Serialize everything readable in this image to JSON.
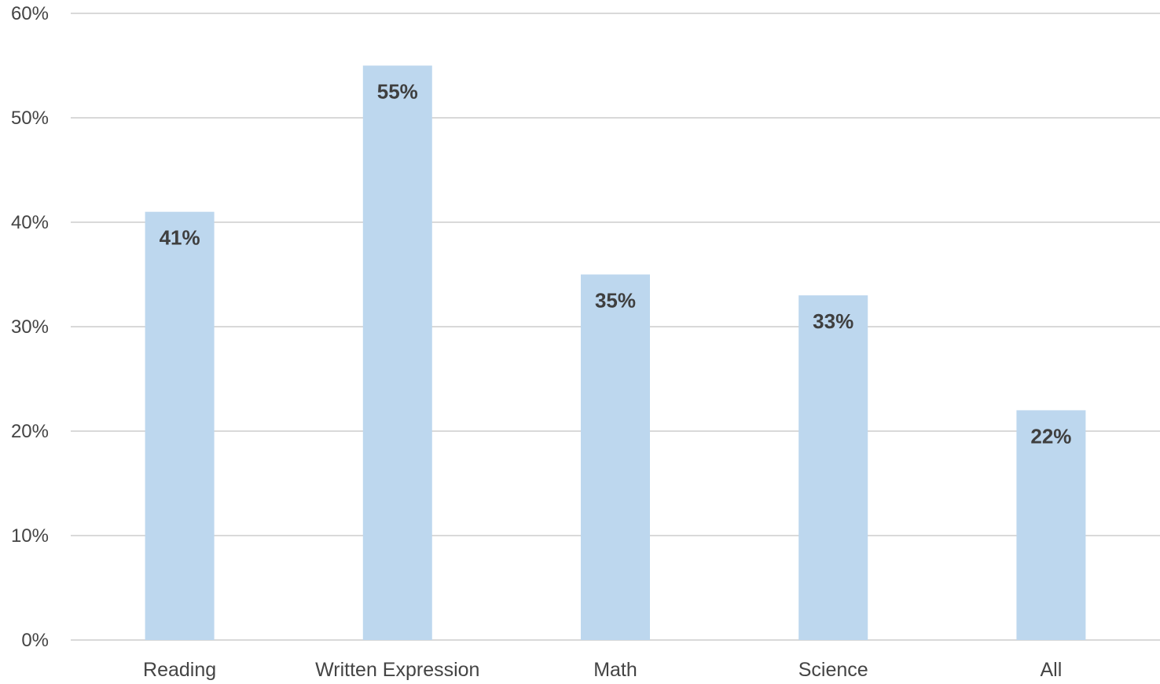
{
  "chart_data": {
    "type": "bar",
    "categories": [
      "Reading",
      "Written Expression",
      "Math",
      "Science",
      "All"
    ],
    "values": [
      41,
      55,
      35,
      33,
      22
    ],
    "value_labels": [
      "41%",
      "55%",
      "35%",
      "33%",
      "22%"
    ],
    "title": "",
    "xlabel": "",
    "ylabel": "",
    "ylim": [
      0,
      60
    ],
    "yticks": [
      0,
      10,
      20,
      30,
      40,
      50,
      60
    ],
    "ytick_labels": [
      "0%",
      "10%",
      "20%",
      "30%",
      "40%",
      "50%",
      "60%"
    ],
    "grid": true,
    "legend": "none",
    "colors": {
      "bar": "#bdd7ee",
      "grid": "#d9d9d9",
      "axis_text": "#444444",
      "data_label": "#3f3f3f"
    }
  }
}
